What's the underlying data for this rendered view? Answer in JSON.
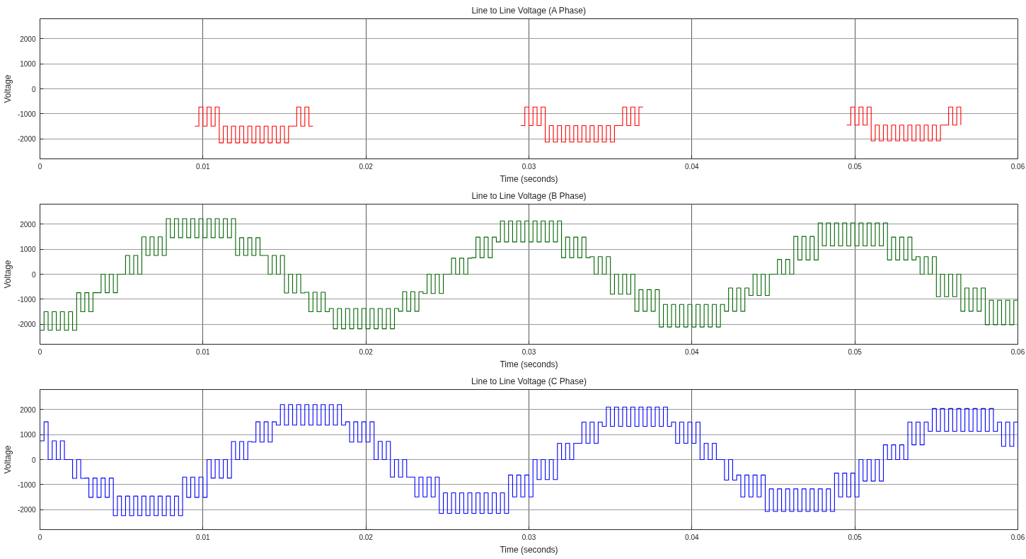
{
  "chart_data": [
    {
      "type": "step",
      "title": "Line to Line Voltage (A Phase)",
      "xlabel": "Time (seconds)",
      "ylabel": "Voltage",
      "xlim": [
        0,
        0.06
      ],
      "ylim": [
        -2800,
        2800
      ],
      "xticks": [
        0,
        0.01,
        0.02,
        0.03,
        0.04,
        0.05,
        0.06
      ],
      "yticks": [
        -2000,
        -1000,
        0,
        1000,
        2000
      ],
      "grid": true,
      "series": [
        {
          "color": "#ff0000",
          "x": [
            0.0095,
            0.00975,
            0.01,
            0.01025,
            0.0105,
            0.01075,
            0.011,
            0.01125,
            0.0115,
            0.01175,
            0.012,
            0.01225,
            0.0125,
            0.01275,
            0.013,
            0.01325,
            0.0135,
            0.01375,
            0.014,
            0.01425,
            0.0145,
            0.01475,
            0.015,
            0.01525,
            0.0155,
            0.01575,
            0.016,
            0.01625,
            0.0165,
            0.01675,
            0.0295,
            0.02975,
            0.03,
            0.03025,
            0.0305,
            0.03075,
            0.031,
            0.03125,
            0.0315,
            0.03175,
            0.032,
            0.03225,
            0.0325,
            0.03275,
            0.033,
            0.03325,
            0.0335,
            0.03375,
            0.034,
            0.03425,
            0.0345,
            0.03475,
            0.035,
            0.03525,
            0.0355,
            0.03575,
            0.036,
            0.03625,
            0.0365,
            0.03675,
            0.037,
            0.0495,
            0.04975,
            0.05,
            0.05025,
            0.0505,
            0.05075,
            0.051,
            0.05125,
            0.0515,
            0.05175,
            0.052,
            0.05225,
            0.0525,
            0.05275,
            0.053,
            0.05325,
            0.0535,
            0.05375,
            0.054,
            0.05425,
            0.0545,
            0.05475,
            0.055,
            0.05525,
            0.0555,
            0.05575,
            0.056,
            0.05625,
            0.0565
          ],
          "values": [
            -1490,
            -730,
            -1490,
            -730,
            -1490,
            -730,
            -2160,
            -1490,
            -2160,
            -1490,
            -2160,
            -1490,
            -2160,
            -1490,
            -2160,
            -1490,
            -2160,
            -1490,
            -2160,
            -1490,
            -2160,
            -1490,
            -2160,
            -1490,
            -1490,
            -730,
            -1490,
            -730,
            -1490,
            null,
            -1470,
            -730,
            -1470,
            -730,
            -1470,
            -730,
            -2130,
            -1470,
            -2130,
            -1470,
            -2130,
            -1470,
            -2130,
            -1470,
            -2130,
            -1470,
            -2130,
            -1470,
            -2130,
            -1470,
            -2130,
            -1470,
            -2130,
            -1470,
            -1470,
            -730,
            -1470,
            -730,
            -1470,
            -730,
            null,
            -1450,
            -730,
            -1450,
            -730,
            -1450,
            -730,
            -2080,
            -1450,
            -2080,
            -1450,
            -2080,
            -1450,
            -2080,
            -1450,
            -2080,
            -1450,
            -2080,
            -1450,
            -2080,
            -1450,
            -2080,
            -1450,
            -2080,
            -1450,
            -1450,
            -730,
            -1450,
            -730,
            -1450
          ]
        }
      ]
    },
    {
      "type": "step",
      "title": "Line to Line Voltage (B Phase)",
      "xlabel": "Time (seconds)",
      "ylabel": "Voltage",
      "xlim": [
        0,
        0.06
      ],
      "ylim": [
        -2800,
        2800
      ],
      "xticks": [
        0,
        0.01,
        0.02,
        0.03,
        0.04,
        0.05,
        0.06
      ],
      "yticks": [
        -2000,
        -1000,
        0,
        1000,
        2000
      ],
      "grid": true,
      "x": [
        0,
        0.00025,
        0.0005,
        0.00075,
        0.001,
        0.00125,
        0.0015,
        0.00175,
        0.002,
        0.00225,
        0.0025,
        0.00275,
        0.003,
        0.00325,
        0.0035,
        0.00375,
        0.004,
        0.00425,
        0.0045,
        0.00475,
        0.005,
        0.00525,
        0.0055,
        0.00575,
        0.006,
        0.00625,
        0.0065,
        0.00675,
        0.007,
        0.00725,
        0.0075,
        0.00775,
        0.008,
        0.00825,
        0.0085,
        0.00875,
        0.009,
        0.00925,
        0.0095,
        0.00975,
        0.01,
        0.01025,
        0.0105,
        0.01075,
        0.011,
        0.01125,
        0.0115,
        0.01175,
        0.012,
        0.01225,
        0.0125,
        0.01275,
        0.013,
        0.01325,
        0.0135,
        0.01375,
        0.014,
        0.01425,
        0.0145,
        0.01475,
        0.015,
        0.01525,
        0.0155,
        0.01575,
        0.016,
        0.01625,
        0.0165,
        0.01675,
        0.017,
        0.01725,
        0.0175,
        0.01775,
        0.018,
        0.01825,
        0.0185,
        0.01875,
        0.019,
        0.01925,
        0.0195,
        0.01975,
        0.02,
        0.02025,
        0.0205,
        0.02075,
        0.021,
        0.02125,
        0.0215,
        0.02175,
        0.022,
        0.02225,
        0.0225,
        0.02275,
        0.023,
        0.02325,
        0.0235,
        0.02375,
        0.024,
        0.02425,
        0.0245,
        0.02475,
        0.025,
        0.02525,
        0.0255,
        0.02575,
        0.026,
        0.02625,
        0.0265,
        0.02675,
        0.027,
        0.02725,
        0.0275,
        0.02775,
        0.028,
        0.02825,
        0.0285,
        0.02875,
        0.029,
        0.02925,
        0.0295,
        0.02975,
        0.03,
        0.03025,
        0.0305,
        0.03075,
        0.031,
        0.03125,
        0.0315,
        0.03175,
        0.032,
        0.03225,
        0.0325,
        0.03275,
        0.033,
        0.03325,
        0.0335,
        0.03375,
        0.034,
        0.03425,
        0.0345,
        0.03475,
        0.035,
        0.03525,
        0.0355,
        0.03575,
        0.036,
        0.03625,
        0.0365,
        0.03675,
        0.037,
        0.03725,
        0.0375,
        0.03775,
        0.038,
        0.03825,
        0.0385,
        0.03875,
        0.039,
        0.03925,
        0.0395,
        0.03975,
        0.04,
        0.04025,
        0.0405,
        0.04075,
        0.041,
        0.04125,
        0.0415,
        0.04175,
        0.042,
        0.04225,
        0.0425,
        0.04275,
        0.043,
        0.04325,
        0.0435,
        0.04375,
        0.044,
        0.04425,
        0.0445,
        0.04475,
        0.045,
        0.04525,
        0.0455,
        0.04575,
        0.046,
        0.04625,
        0.0465,
        0.04675,
        0.047,
        0.04725,
        0.0475,
        0.04775,
        0.048,
        0.04825,
        0.0485,
        0.04875,
        0.049,
        0.04925,
        0.0495,
        0.04975,
        0.05,
        0.05025,
        0.0505,
        0.05075,
        0.051,
        0.05125,
        0.0515,
        0.05175,
        0.052,
        0.05225,
        0.0525,
        0.05275,
        0.053,
        0.05325,
        0.0535,
        0.05375,
        0.054,
        0.05425,
        0.0545,
        0.05475,
        0.055,
        0.05525,
        0.0555,
        0.05575,
        0.056,
        0.05625,
        0.0565,
        0.05675,
        0.057,
        0.05725,
        0.0575,
        0.05775,
        0.058,
        0.05825,
        0.0585,
        0.05875,
        0.059,
        0.05925,
        0.0595,
        0.05975,
        0.06
      ],
      "series": [
        {
          "color": "#006400",
          "values": [
            -2240,
            -1500,
            -2240,
            -1500,
            -2240,
            -1500,
            -2240,
            -1500,
            -2240,
            -740,
            -1500,
            -740,
            -1500,
            -740,
            -740,
            0,
            -740,
            0,
            -740,
            0,
            0,
            750,
            0,
            750,
            0,
            1490,
            750,
            1490,
            750,
            1490,
            750,
            2220,
            1460,
            2220,
            1460,
            2220,
            1460,
            2220,
            1460,
            2220,
            1460,
            2220,
            1460,
            2220,
            1460,
            2220,
            1460,
            2220,
            750,
            1460,
            750,
            1460,
            750,
            1460,
            750,
            750,
            0,
            750,
            0,
            750,
            -750,
            0,
            -750,
            0,
            -750,
            -720,
            -1500,
            -720,
            -1500,
            -720,
            -1500,
            -1370,
            -2180,
            -1370,
            -2180,
            -1370,
            -2180,
            -1370,
            -2180,
            -1370,
            -2180,
            -1370,
            -2180,
            -1370,
            -2180,
            -1370,
            -2180,
            -1370,
            -1480,
            -700,
            -1480,
            -700,
            -1480,
            -700,
            -770,
            0,
            -770,
            0,
            -770,
            0,
            0,
            640,
            0,
            640,
            0,
            640,
            660,
            1480,
            660,
            1480,
            660,
            1480,
            1290,
            2130,
            1290,
            2130,
            1290,
            2130,
            1290,
            2130,
            1290,
            2130,
            1290,
            2130,
            1290,
            2130,
            1290,
            2130,
            660,
            1480,
            660,
            1480,
            660,
            1480,
            660,
            700,
            0,
            700,
            0,
            700,
            -800,
            0,
            -800,
            0,
            -800,
            0,
            -1480,
            -620,
            -1480,
            -620,
            -1480,
            -620,
            -2110,
            -1210,
            -2110,
            -1210,
            -2110,
            -1210,
            -2110,
            -1210,
            -2110,
            -1210,
            -2110,
            -1210,
            -2110,
            -1210,
            -2110,
            -1210,
            -1480,
            -550,
            -1480,
            -550,
            -1480,
            -550,
            -850,
            0,
            -850,
            0,
            -850,
            0,
            0,
            590,
            0,
            590,
            0,
            1510,
            570,
            1510,
            570,
            1510,
            570,
            2050,
            1130,
            2050,
            1130,
            2050,
            1130,
            2050,
            1130,
            2050,
            1130,
            2050,
            1130,
            2050,
            1130,
            2050,
            1130,
            2050,
            570,
            1480,
            570,
            1480,
            570,
            1480,
            570,
            700,
            0,
            700,
            0,
            700,
            -900,
            0,
            -900,
            0,
            -900,
            0,
            -1480,
            -550,
            -1480,
            -550,
            -1480,
            -550,
            -2020,
            -1040,
            -2020,
            -1040,
            -2020,
            -1040,
            -2020,
            -1040,
            -2020
          ]
        }
      ]
    },
    {
      "type": "step",
      "title": "Line to Line Voltage (C Phase)",
      "xlabel": "Time (seconds)",
      "ylabel": "Voltage",
      "xlim": [
        0,
        0.06
      ],
      "ylim": [
        -2800,
        2800
      ],
      "xticks": [
        0,
        0.01,
        0.02,
        0.03,
        0.04,
        0.05,
        0.06
      ],
      "yticks": [
        -2000,
        -1000,
        0,
        1000,
        2000
      ],
      "grid": true,
      "x": [
        0,
        0.00025,
        0.0005,
        0.00075,
        0.001,
        0.00125,
        0.0015,
        0.00175,
        0.002,
        0.00225,
        0.0025,
        0.00275,
        0.003,
        0.00325,
        0.0035,
        0.00375,
        0.004,
        0.00425,
        0.0045,
        0.00475,
        0.005,
        0.00525,
        0.0055,
        0.00575,
        0.006,
        0.00625,
        0.0065,
        0.00675,
        0.007,
        0.00725,
        0.0075,
        0.00775,
        0.008,
        0.00825,
        0.0085,
        0.00875,
        0.009,
        0.00925,
        0.0095,
        0.00975,
        0.01,
        0.01025,
        0.0105,
        0.01075,
        0.011,
        0.01125,
        0.0115,
        0.01175,
        0.012,
        0.01225,
        0.0125,
        0.01275,
        0.013,
        0.01325,
        0.0135,
        0.01375,
        0.014,
        0.01425,
        0.0145,
        0.01475,
        0.015,
        0.01525,
        0.0155,
        0.01575,
        0.016,
        0.01625,
        0.0165,
        0.01675,
        0.017,
        0.01725,
        0.0175,
        0.01775,
        0.018,
        0.01825,
        0.0185,
        0.01875,
        0.019,
        0.01925,
        0.0195,
        0.01975,
        0.02,
        0.02025,
        0.0205,
        0.02075,
        0.021,
        0.02125,
        0.0215,
        0.02175,
        0.022,
        0.02225,
        0.0225,
        0.02275,
        0.023,
        0.02325,
        0.0235,
        0.02375,
        0.024,
        0.02425,
        0.0245,
        0.02475,
        0.025,
        0.02525,
        0.0255,
        0.02575,
        0.026,
        0.02625,
        0.0265,
        0.02675,
        0.027,
        0.02725,
        0.0275,
        0.02775,
        0.028,
        0.02825,
        0.0285,
        0.02875,
        0.029,
        0.02925,
        0.0295,
        0.02975,
        0.03,
        0.03025,
        0.0305,
        0.03075,
        0.031,
        0.03125,
        0.0315,
        0.03175,
        0.032,
        0.03225,
        0.0325,
        0.03275,
        0.033,
        0.03325,
        0.0335,
        0.03375,
        0.034,
        0.03425,
        0.0345,
        0.03475,
        0.035,
        0.03525,
        0.0355,
        0.03575,
        0.036,
        0.03625,
        0.0365,
        0.03675,
        0.037,
        0.03725,
        0.0375,
        0.03775,
        0.038,
        0.03825,
        0.0385,
        0.03875,
        0.039,
        0.03925,
        0.0395,
        0.03975,
        0.04,
        0.04025,
        0.0405,
        0.04075,
        0.041,
        0.04125,
        0.0415,
        0.04175,
        0.042,
        0.04225,
        0.0425,
        0.04275,
        0.043,
        0.04325,
        0.0435,
        0.04375,
        0.044,
        0.04425,
        0.0445,
        0.04475,
        0.045,
        0.04525,
        0.0455,
        0.04575,
        0.046,
        0.04625,
        0.0465,
        0.04675,
        0.047,
        0.04725,
        0.0475,
        0.04775,
        0.048,
        0.04825,
        0.0485,
        0.04875,
        0.049,
        0.04925,
        0.0495,
        0.04975,
        0.05,
        0.05025,
        0.0505,
        0.05075,
        0.051,
        0.05125,
        0.0515,
        0.05175,
        0.052,
        0.05225,
        0.0525,
        0.05275,
        0.053,
        0.05325,
        0.0535,
        0.05375,
        0.054,
        0.05425,
        0.0545,
        0.05475,
        0.055,
        0.05525,
        0.0555,
        0.05575,
        0.056,
        0.05625,
        0.0565,
        0.05675,
        0.057,
        0.05725,
        0.0575,
        0.05775,
        0.058,
        0.05825,
        0.0585,
        0.05875,
        0.059,
        0.05925,
        0.0595,
        0.05975,
        0.06
      ],
      "series": [
        {
          "color": "#0000ff",
          "values": [
            750,
            1510,
            0,
            750,
            0,
            750,
            0,
            0,
            -750,
            0,
            -750,
            -740,
            -1510,
            -740,
            -1510,
            -740,
            -1510,
            -740,
            -2240,
            -1460,
            -2240,
            -1460,
            -2240,
            -1460,
            -2240,
            -1460,
            -2240,
            -1460,
            -2240,
            -1460,
            -2240,
            -1460,
            -2240,
            -1460,
            -2240,
            -700,
            -1510,
            -700,
            -1510,
            -700,
            -1510,
            0,
            -740,
            0,
            -740,
            0,
            -740,
            720,
            0,
            720,
            0,
            720,
            700,
            1510,
            700,
            1510,
            700,
            1510,
            1380,
            2200,
            1380,
            2200,
            1380,
            2200,
            1380,
            2200,
            1380,
            2200,
            1380,
            2200,
            1380,
            2200,
            1380,
            2200,
            1380,
            1510,
            700,
            1510,
            700,
            1510,
            700,
            1510,
            0,
            730,
            0,
            730,
            -700,
            0,
            -700,
            0,
            -700,
            -700,
            -1490,
            -700,
            -1490,
            -700,
            -1490,
            -700,
            -2150,
            -1330,
            -2150,
            -1330,
            -2150,
            -1330,
            -2150,
            -1330,
            -2150,
            -1330,
            -2150,
            -1330,
            -2150,
            -1330,
            -2150,
            -1330,
            -2150,
            -620,
            -1490,
            -620,
            -1490,
            -620,
            -1490,
            0,
            -800,
            0,
            -800,
            0,
            -800,
            650,
            0,
            650,
            0,
            650,
            650,
            1500,
            650,
            1500,
            650,
            1500,
            1330,
            2100,
            1330,
            2100,
            1330,
            2100,
            1330,
            2100,
            1330,
            2100,
            1330,
            2100,
            1330,
            2100,
            1330,
            2100,
            1330,
            1500,
            650,
            1500,
            650,
            1500,
            650,
            1500,
            0,
            650,
            0,
            650,
            0,
            0,
            -820,
            0,
            -820,
            -620,
            -1490,
            -620,
            -1490,
            -620,
            -1490,
            -620,
            -2070,
            -1170,
            -2070,
            -1170,
            -2070,
            -1170,
            -2070,
            -1170,
            -2070,
            -1170,
            -2070,
            -1170,
            -2070,
            -1170,
            -2070,
            -1170,
            -2070,
            -540,
            -1490,
            -540,
            -1490,
            -540,
            -1490,
            0,
            -860,
            0,
            -860,
            0,
            -860,
            590,
            0,
            590,
            0,
            590,
            0,
            1500,
            590,
            1500,
            590,
            1500,
            1130,
            2040,
            1130,
            2040,
            1130,
            2040,
            1130,
            2040,
            1130,
            2040,
            1130,
            2040,
            1130,
            2040,
            1130,
            2040,
            1130,
            1500,
            530,
            1500,
            530,
            1500,
            530
          ]
        }
      ]
    }
  ]
}
